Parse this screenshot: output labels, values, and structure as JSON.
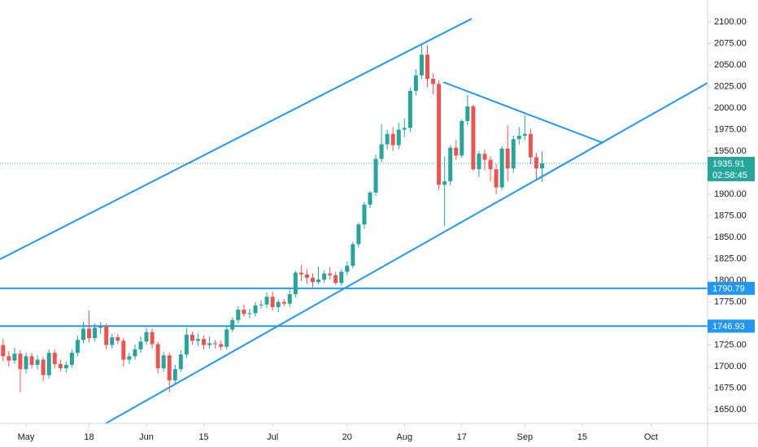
{
  "chart_data": {
    "type": "candlestick",
    "up_color": "#26a69a",
    "down_color": "#ef5350",
    "line_color": "#2196f3",
    "grid": false,
    "countdown": "02:58:45",
    "ylim": [
      1634,
      2125.5
    ],
    "yticks": [
      {
        "value": 1650,
        "label": "1650.00"
      },
      {
        "value": 1675,
        "label": "1675.00"
      },
      {
        "value": 1700,
        "label": "1700.00"
      },
      {
        "value": 1725,
        "label": "1725.00"
      },
      {
        "value": 1750,
        "label": "1750.00"
      },
      {
        "value": 1775,
        "label": "1775.00"
      },
      {
        "value": 1800,
        "label": "1800.00"
      },
      {
        "value": 1825,
        "label": "1825.00"
      },
      {
        "value": 1850,
        "label": "1850.00"
      },
      {
        "value": 1875,
        "label": "1875.00"
      },
      {
        "value": 1900,
        "label": "1900.00"
      },
      {
        "value": 1925,
        "label": "1925.00"
      },
      {
        "value": 1950,
        "label": "1950.00"
      },
      {
        "value": 1975,
        "label": "1975.00"
      },
      {
        "value": 2000,
        "label": "2000.00"
      },
      {
        "value": 2025,
        "label": "2025.00"
      },
      {
        "value": 2050,
        "label": "2050.00"
      },
      {
        "value": 2075,
        "label": "2075.00"
      },
      {
        "value": 2100,
        "label": "2100.00"
      }
    ],
    "levels": [
      {
        "value": 1790.79
      },
      {
        "value": 1746.93
      }
    ],
    "xticks": [
      {
        "value": "May 1",
        "label": "May"
      },
      {
        "value": "May 18",
        "label": "18"
      },
      {
        "value": "Jun 1",
        "label": "Jun"
      },
      {
        "value": "Jun 15",
        "label": "15"
      },
      {
        "value": "Jul 1",
        "label": "Jul"
      },
      {
        "value": "Jul 20",
        "label": "20"
      },
      {
        "value": "Aug 3",
        "label": "Aug"
      },
      {
        "value": "Aug 17",
        "label": "17"
      },
      {
        "value": "Sep 1",
        "label": "Sep"
      },
      {
        "value": "Sep 15",
        "label": "15"
      },
      {
        "value": "Oct 1",
        "label": "Oct"
      }
    ],
    "x": [
      "Apr 27",
      "Apr 28",
      "Apr 29",
      "Apr 30",
      "May 1",
      "May 4",
      "May 5",
      "May 6",
      "May 7",
      "May 8",
      "May 11",
      "May 12",
      "May 13",
      "May 14",
      "May 15",
      "May 18",
      "May 19",
      "May 20",
      "May 21",
      "May 22",
      "May 25",
      "May 26",
      "May 27",
      "May 28",
      "May 29",
      "Jun 1",
      "Jun 2",
      "Jun 3",
      "Jun 4",
      "Jun 5",
      "Jun 8",
      "Jun 9",
      "Jun 10",
      "Jun 11",
      "Jun 12",
      "Jun 15",
      "Jun 16",
      "Jun 17",
      "Jun 18",
      "Jun 19",
      "Jun 22",
      "Jun 23",
      "Jun 24",
      "Jun 25",
      "Jun 26",
      "Jun 29",
      "Jun 30",
      "Jul 1",
      "Jul 2",
      "Jul 3",
      "Jul 6",
      "Jul 7",
      "Jul 8",
      "Jul 9",
      "Jul 10",
      "Jul 13",
      "Jul 14",
      "Jul 15",
      "Jul 16",
      "Jul 17",
      "Jul 20",
      "Jul 21",
      "Jul 22",
      "Jul 23",
      "Jul 24",
      "Jul 27",
      "Jul 28",
      "Jul 29",
      "Jul 30",
      "Jul 31",
      "Aug 3",
      "Aug 4",
      "Aug 5",
      "Aug 6",
      "Aug 7",
      "Aug 10",
      "Aug 11",
      "Aug 12",
      "Aug 13",
      "Aug 14",
      "Aug 17",
      "Aug 18",
      "Aug 19",
      "Aug 20",
      "Aug 21",
      "Aug 24",
      "Aug 25",
      "Aug 26",
      "Aug 27",
      "Aug 28",
      "Aug 31",
      "Sep 1",
      "Sep 2",
      "Sep 3",
      "Sep 4",
      "Sep 7",
      "Sep 8",
      "Sep 9",
      "Sep 10",
      "Sep 11",
      "Sep 14",
      "Sep 15",
      "Sep 16",
      "Sep 17",
      "Sep 18",
      "Sep 21",
      "Sep 22",
      "Sep 23",
      "Sep 24",
      "Sep 25",
      "Sep 28",
      "Sep 29",
      "Sep 30",
      "Oct 1",
      "Oct 2",
      "Oct 5",
      "Oct 6",
      "Oct 7",
      "Oct 8",
      "Oct 9",
      "Oct 12",
      "Oct 13"
    ],
    "open": [
      1725,
      1712,
      1707,
      1715,
      1697,
      1712,
      1702,
      1708,
      1690,
      1716,
      1703,
      1698,
      1702,
      1716,
      1731,
      1744,
      1733,
      1745,
      1747,
      1725,
      1734,
      1730,
      1708,
      1712,
      1720,
      1729,
      1740,
      1726,
      1698,
      1713,
      1684,
      1697,
      1714,
      1737,
      1730,
      1732,
      1725,
      1727,
      1726,
      1723,
      1743,
      1754,
      1766,
      1761,
      1762,
      1771,
      1772,
      1781,
      1769,
      1775,
      1773,
      1784,
      1809,
      1807,
      1803,
      1798,
      1801,
      1808,
      1806,
      1797,
      1810,
      1817,
      1842,
      1865,
      1888,
      1902,
      1941,
      1958,
      1970,
      1957,
      1975,
      1977,
      2020,
      2038,
      2062,
      2034,
      2028,
      1911,
      1915,
      1954,
      1945,
      1985,
      2002,
      1929,
      1947,
      1940,
      1929,
      1908,
      1953,
      1930,
      1964,
      1968,
      1970,
      1943,
      1930,
      null,
      null,
      null,
      null,
      null,
      null,
      null,
      null,
      null,
      null,
      null,
      null,
      null,
      null,
      null,
      null,
      null,
      null,
      null,
      null,
      null,
      null,
      null,
      null,
      null,
      null,
      null
    ],
    "high": [
      1732,
      1718,
      1722,
      1719,
      1716,
      1716,
      1713,
      1711,
      1720,
      1720,
      1708,
      1706,
      1720,
      1736,
      1752,
      1765,
      1750,
      1752,
      1750,
      1738,
      1738,
      1733,
      1716,
      1726,
      1735,
      1745,
      1744,
      1729,
      1717,
      1716,
      1702,
      1719,
      1745,
      1741,
      1738,
      1736,
      1735,
      1731,
      1730,
      1746,
      1757,
      1770,
      1772,
      1767,
      1775,
      1777,
      1786,
      1787,
      1778,
      1778,
      1789,
      1811,
      1818,
      1813,
      1808,
      1816,
      1812,
      1815,
      1810,
      1813,
      1822,
      1845,
      1867,
      1891,
      1904,
      1946,
      1981,
      1975,
      1978,
      1983,
      1988,
      2024,
      2045,
      2075,
      2073,
      2040,
      2032,
      1944,
      1957,
      1963,
      1987,
      2015,
      2004,
      1950,
      1952,
      1944,
      1935,
      1956,
      1980,
      1968,
      1978,
      1992,
      1976,
      1948,
      1950,
      null,
      null,
      null,
      null,
      null,
      null,
      null,
      null,
      null,
      null,
      null,
      null,
      null,
      null,
      null,
      null,
      null,
      null,
      null,
      null,
      null,
      null,
      null,
      null,
      null,
      null,
      null
    ],
    "low": [
      1706,
      1700,
      1703,
      1670,
      1692,
      1698,
      1697,
      1683,
      1686,
      1698,
      1694,
      1693,
      1699,
      1712,
      1727,
      1728,
      1729,
      1738,
      1720,
      1721,
      1726,
      1700,
      1703,
      1708,
      1716,
      1725,
      1721,
      1692,
      1694,
      1670,
      1680,
      1694,
      1710,
      1725,
      1724,
      1720,
      1721,
      1721,
      1719,
      1720,
      1740,
      1750,
      1758,
      1756,
      1758,
      1767,
      1768,
      1765,
      1763,
      1770,
      1769,
      1780,
      1799,
      1796,
      1792,
      1795,
      1797,
      1801,
      1795,
      1794,
      1806,
      1814,
      1838,
      1860,
      1884,
      1898,
      1937,
      1952,
      1950,
      1952,
      1966,
      1972,
      2015,
      2034,
      2024,
      2016,
      1905,
      1863,
      1910,
      1940,
      1942,
      1980,
      1927,
      1920,
      1928,
      1915,
      1900,
      1905,
      1915,
      1925,
      1958,
      1963,
      1935,
      1918,
      1914,
      null,
      null,
      null,
      null,
      null,
      null,
      null,
      null,
      null,
      null,
      null,
      null,
      null,
      null,
      null,
      null,
      null,
      null,
      null,
      null,
      null,
      null,
      null,
      null,
      null,
      null,
      null
    ],
    "close": [
      1712,
      1707,
      1715,
      1697,
      1712,
      1702,
      1708,
      1690,
      1716,
      1703,
      1698,
      1702,
      1716,
      1731,
      1744,
      1733,
      1745,
      1747,
      1725,
      1734,
      1730,
      1708,
      1712,
      1720,
      1729,
      1740,
      1726,
      1698,
      1713,
      1684,
      1697,
      1714,
      1737,
      1730,
      1732,
      1725,
      1727,
      1726,
      1723,
      1743,
      1754,
      1766,
      1761,
      1762,
      1771,
      1772,
      1781,
      1769,
      1775,
      1773,
      1784,
      1809,
      1807,
      1803,
      1798,
      1801,
      1808,
      1806,
      1797,
      1810,
      1817,
      1842,
      1865,
      1888,
      1902,
      1941,
      1958,
      1970,
      1957,
      1975,
      1977,
      2020,
      2038,
      2062,
      2034,
      2028,
      1911,
      1915,
      1954,
      1945,
      1985,
      2002,
      1929,
      1947,
      1940,
      1929,
      1908,
      1953,
      1930,
      1964,
      1968,
      1970,
      1943,
      1930,
      1935.91,
      null,
      null,
      null,
      null,
      null,
      null,
      null,
      null,
      null,
      null,
      null,
      null,
      null,
      null,
      null,
      null,
      null,
      null,
      null,
      null,
      null,
      null,
      null,
      null,
      null,
      null,
      null
    ]
  }
}
